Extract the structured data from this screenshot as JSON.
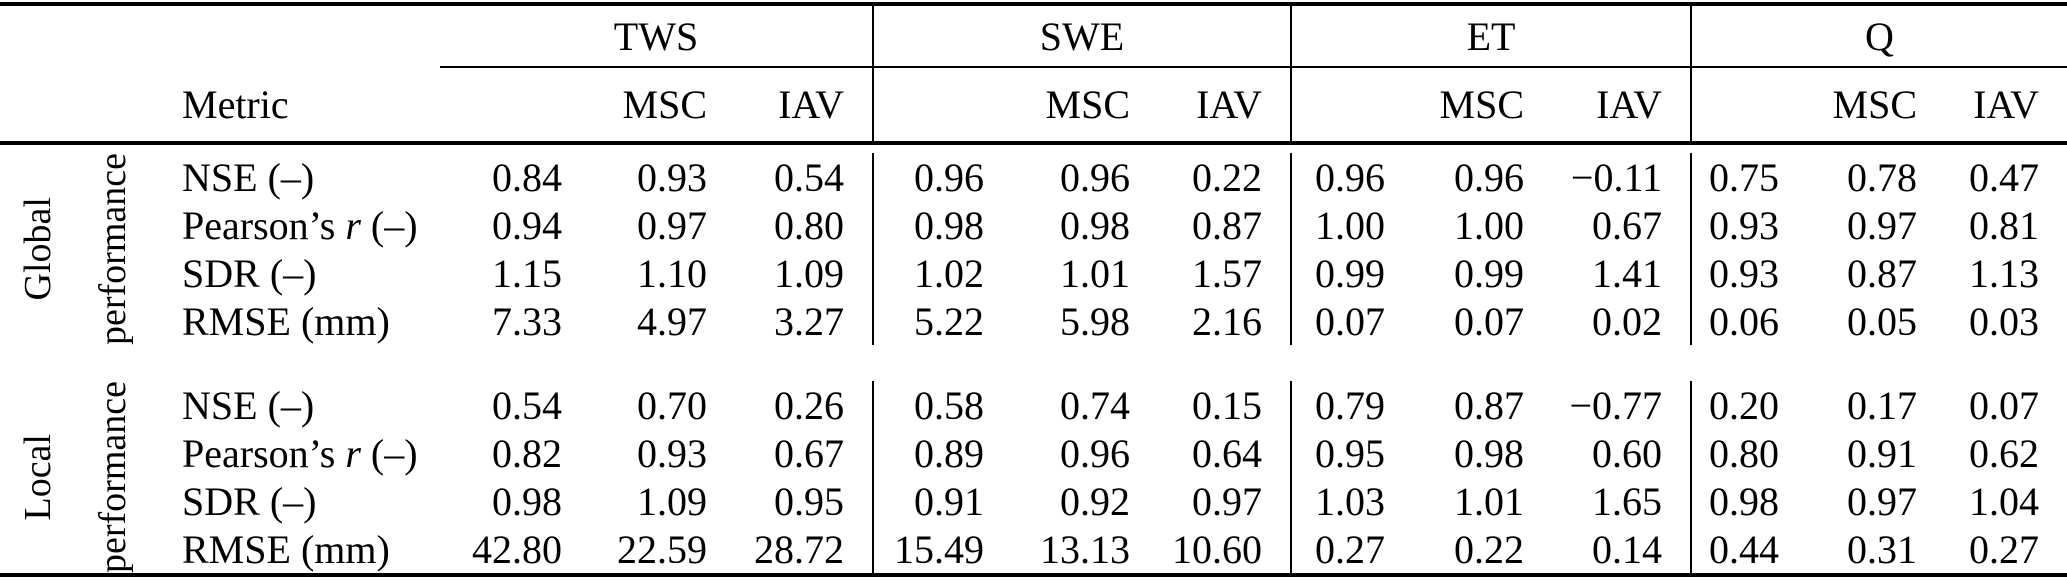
{
  "header": {
    "metric": "Metric",
    "groups": [
      {
        "label": "TWS",
        "msc": "MSC",
        "iav": "IAV"
      },
      {
        "label": "SWE",
        "msc": "MSC",
        "iav": "IAV"
      },
      {
        "label": "ET",
        "msc": "MSC",
        "iav": "IAV"
      },
      {
        "label": "Q",
        "msc": "MSC",
        "iav": "IAV"
      }
    ]
  },
  "sections": [
    {
      "label_line1": "Global",
      "label_line2": "performance",
      "rows": [
        {
          "metric_pre": "NSE",
          "metric_it": "",
          "metric_post": " (–)",
          "values": [
            "0.84",
            "0.93",
            "0.54",
            "0.96",
            "0.96",
            "0.22",
            "0.96",
            "0.96",
            "−0.11",
            "0.75",
            "0.78",
            "0.47"
          ]
        },
        {
          "metric_pre": "Pearson’s ",
          "metric_it": "r",
          "metric_post": " (–)",
          "values": [
            "0.94",
            "0.97",
            "0.80",
            "0.98",
            "0.98",
            "0.87",
            "1.00",
            "1.00",
            "0.67",
            "0.93",
            "0.97",
            "0.81"
          ]
        },
        {
          "metric_pre": "SDR",
          "metric_it": "",
          "metric_post": " (–)",
          "values": [
            "1.15",
            "1.10",
            "1.09",
            "1.02",
            "1.01",
            "1.57",
            "0.99",
            "0.99",
            "1.41",
            "0.93",
            "0.87",
            "1.13"
          ]
        },
        {
          "metric_pre": "RMSE",
          "metric_it": "",
          "metric_post": " (mm)",
          "values": [
            "7.33",
            "4.97",
            "3.27",
            "5.22",
            "5.98",
            "2.16",
            "0.07",
            "0.07",
            "0.02",
            "0.06",
            "0.05",
            "0.03"
          ]
        }
      ]
    },
    {
      "label_line1": "Local",
      "label_line2": "performance",
      "rows": [
        {
          "metric_pre": "NSE",
          "metric_it": "",
          "metric_post": " (–)",
          "values": [
            "0.54",
            "0.70",
            "0.26",
            "0.58",
            "0.74",
            "0.15",
            "0.79",
            "0.87",
            "−0.77",
            "0.20",
            "0.17",
            "0.07"
          ]
        },
        {
          "metric_pre": "Pearson’s ",
          "metric_it": "r",
          "metric_post": " (–)",
          "values": [
            "0.82",
            "0.93",
            "0.67",
            "0.89",
            "0.96",
            "0.64",
            "0.95",
            "0.98",
            "0.60",
            "0.80",
            "0.91",
            "0.62"
          ]
        },
        {
          "metric_pre": "SDR",
          "metric_it": "",
          "metric_post": " (–)",
          "values": [
            "0.98",
            "1.09",
            "0.95",
            "0.91",
            "0.92",
            "0.97",
            "1.03",
            "1.01",
            "1.65",
            "0.98",
            "0.97",
            "1.04"
          ]
        },
        {
          "metric_pre": "RMSE",
          "metric_it": "",
          "metric_post": " (mm)",
          "values": [
            "42.80",
            "22.59",
            "28.72",
            "15.49",
            "13.13",
            "10.60",
            "0.27",
            "0.22",
            "0.14",
            "0.44",
            "0.31",
            "0.27"
          ]
        }
      ]
    }
  ],
  "colors": {
    "text": "#000000",
    "background": "#ffffff",
    "rules": "#000000"
  }
}
